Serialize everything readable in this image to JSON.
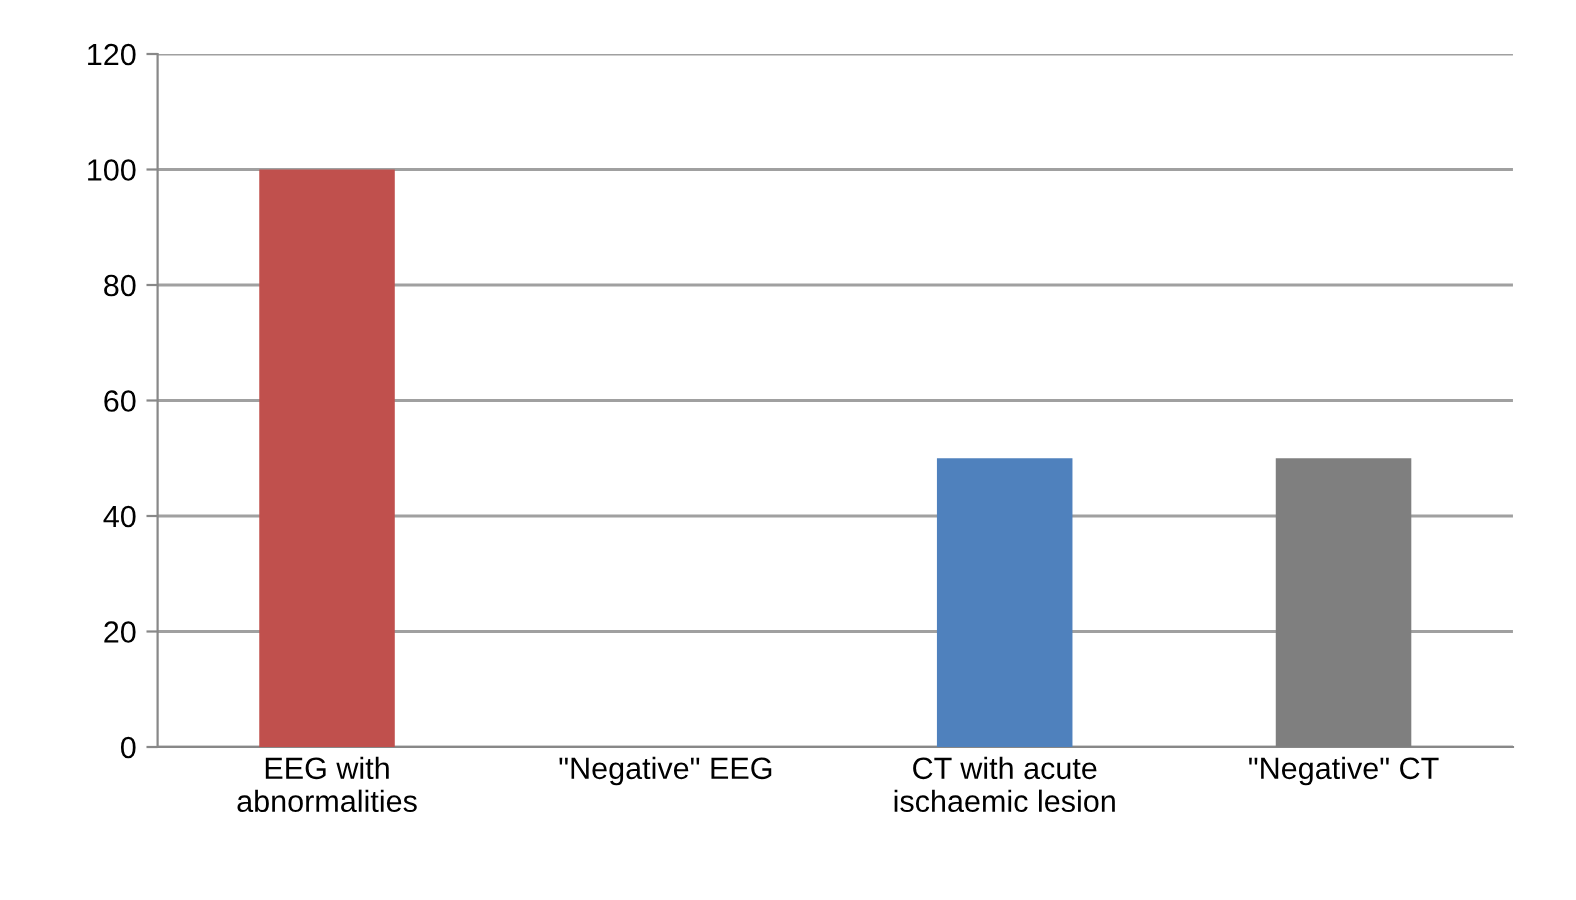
{
  "chart_data": {
    "type": "bar",
    "categories": [
      "EEG with\nabnormalities",
      "\"Negative\" EEG",
      "CT with acute\nischaemic lesion",
      "\"Negative\" CT"
    ],
    "values": [
      100,
      0,
      50,
      50
    ],
    "colors": [
      "#c0504d",
      "#9bbb59",
      "#4f81bd",
      "#7f7f7f"
    ],
    "ylim": [
      0,
      120
    ],
    "yticks": [
      0,
      20,
      40,
      60,
      80,
      100,
      120
    ],
    "grid": "y",
    "legend": false
  }
}
